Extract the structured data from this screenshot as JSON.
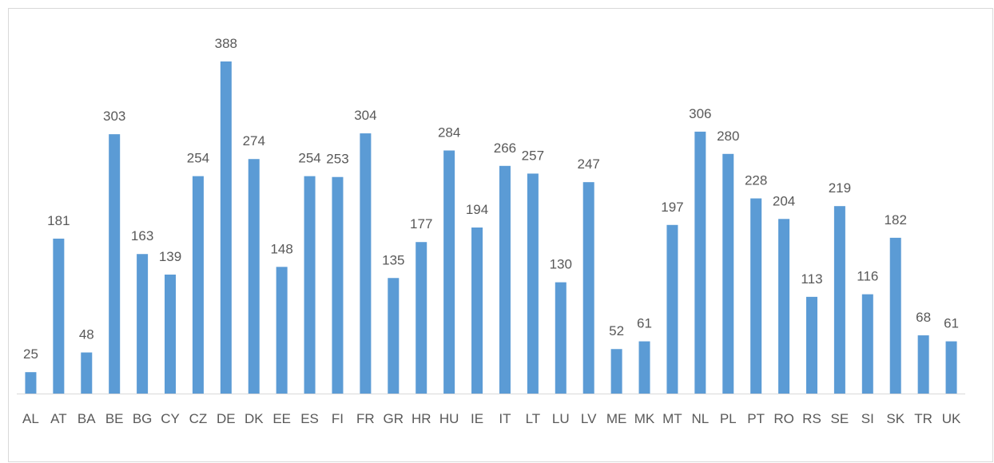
{
  "chart_data": {
    "type": "bar",
    "categories": [
      "AL",
      "AT",
      "BA",
      "BE",
      "BG",
      "CY",
      "CZ",
      "DE",
      "DK",
      "EE",
      "ES",
      "FI",
      "FR",
      "GR",
      "HR",
      "HU",
      "IE",
      "IT",
      "LT",
      "LU",
      "LV",
      "ME",
      "MK",
      "MT",
      "NL",
      "PL",
      "PT",
      "RO",
      "RS",
      "SE",
      "SI",
      "SK",
      "TR",
      "UK"
    ],
    "values": [
      25,
      181,
      48,
      303,
      163,
      139,
      254,
      388,
      274,
      148,
      254,
      253,
      304,
      135,
      177,
      284,
      194,
      266,
      257,
      130,
      247,
      52,
      61,
      197,
      306,
      280,
      228,
      204,
      113,
      219,
      116,
      182,
      68,
      61
    ],
    "color": "#5b9bd5"
  }
}
